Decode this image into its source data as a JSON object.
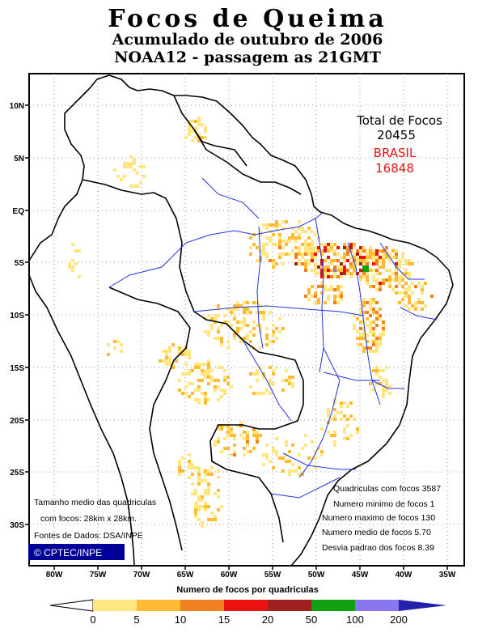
{
  "title": "Focos de Queima",
  "subtitle1": "Acumulado de outubro de 2006",
  "subtitle2": "NOAA12 - passagem as 21GMT",
  "totals": {
    "label": "Total de Focos",
    "total": "20455",
    "country": "BRASIL",
    "country_total": "16848"
  },
  "stats": [
    "Quadriculas com focos 3587",
    "Numero minimo de focos 1",
    "Numero maximo de focos 130",
    "Numero medio de focos 5.70",
    "Desvia padrao dos focos 8.39"
  ],
  "grid_note": [
    "Tamanho medio das quadriculas",
    "com focos: 28km x 28km."
  ],
  "source_note": "Fontes de Dados: DSA/INPE",
  "credit": "© CPTEC/INPE",
  "lat_labels": [
    "10N",
    "5N",
    "EQ",
    "5S",
    "10S",
    "15S",
    "20S",
    "25S",
    "30S"
  ],
  "lon_labels": [
    "80W",
    "75W",
    "70W",
    "65W",
    "60W",
    "55W",
    "50W",
    "45W",
    "40W",
    "35W"
  ],
  "colorbar": {
    "label": "Numero de focos por quadriculas",
    "ticks": [
      "0",
      "5",
      "10",
      "15",
      "20",
      "50",
      "100",
      "200"
    ],
    "colors": [
      "#ffe680",
      "#ffbb33",
      "#f08020",
      "#ee1111",
      "#a02020",
      "#11a011",
      "#8877ee"
    ],
    "end_color": "#2222aa"
  },
  "colors": {
    "total_text": "#000000",
    "country_text": "#ee1111",
    "credit_bg": "#000099",
    "river": "#2233dd"
  }
}
